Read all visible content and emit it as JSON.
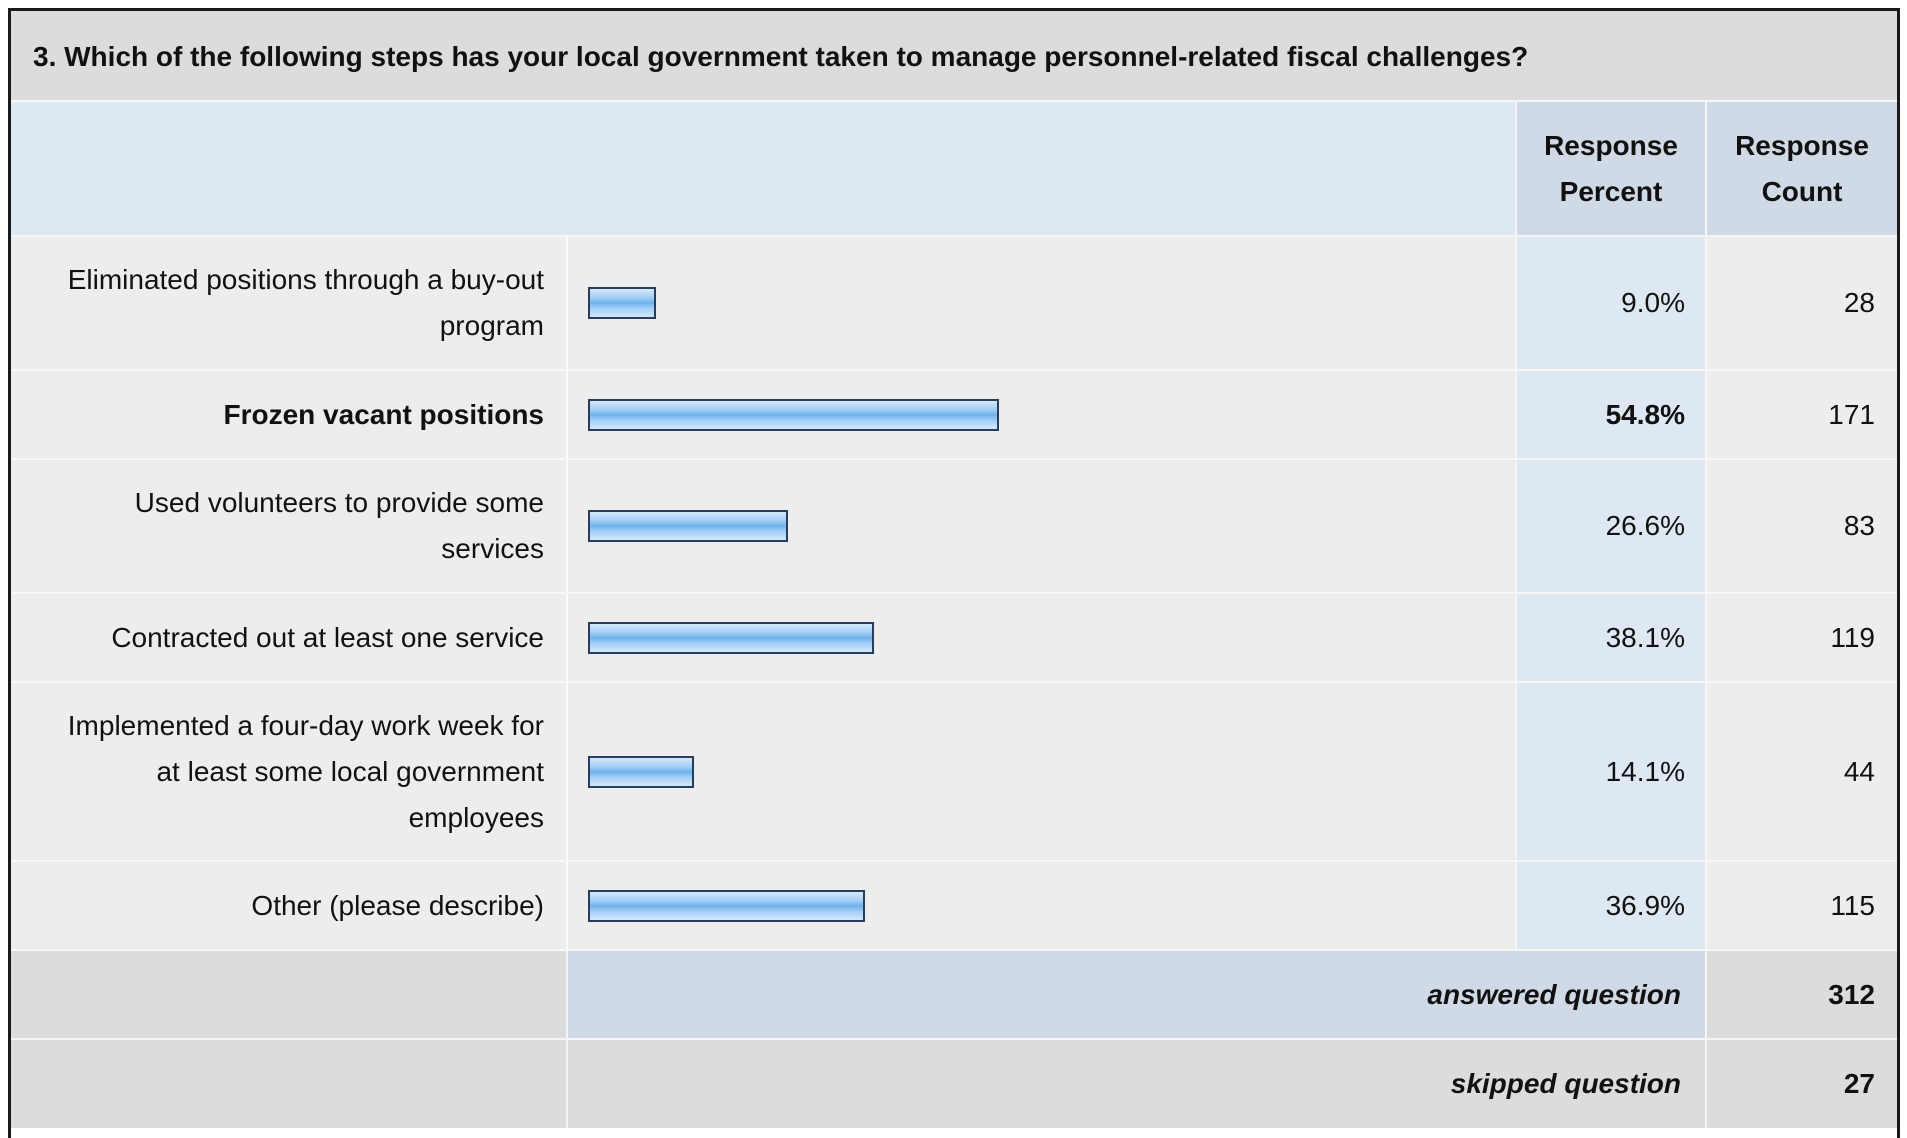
{
  "question": "3. Which of the following steps has your local government taken to manage personnel-related fiscal challenges?",
  "headers": {
    "percent_line1": "Response",
    "percent_line2": "Percent",
    "count_line1": "Response",
    "count_line2": "Count"
  },
  "chart_data": {
    "type": "bar",
    "orientation": "horizontal",
    "categories": [
      "Eliminated positions through a buy-out program",
      "Frozen vacant positions",
      "Used volunteers to provide some services",
      "Contracted out at least one service",
      "Implemented a four-day work week for at least some local government employees",
      "Other (please describe)"
    ],
    "values": [
      9.0,
      54.8,
      26.6,
      38.1,
      14.1,
      36.9
    ],
    "xlim": [
      0,
      100
    ]
  },
  "rows": [
    {
      "label": "Eliminated positions through a buy-out program",
      "percent": 9.0,
      "percent_text": "9.0%",
      "count": "28",
      "highlight": false
    },
    {
      "label": "Frozen vacant positions",
      "percent": 54.8,
      "percent_text": "54.8%",
      "count": "171",
      "highlight": true
    },
    {
      "label": "Used volunteers to provide some services",
      "percent": 26.6,
      "percent_text": "26.6%",
      "count": "83",
      "highlight": false
    },
    {
      "label": "Contracted out at least one service",
      "percent": 38.1,
      "percent_text": "38.1%",
      "count": "119",
      "highlight": false
    },
    {
      "label": "Implemented a four-day work week for at least some local government employees",
      "percent": 14.1,
      "percent_text": "14.1%",
      "count": "44",
      "highlight": false
    },
    {
      "label": "Other (please describe)",
      "percent": 36.9,
      "percent_text": "36.9%",
      "count": "115",
      "highlight": false
    }
  ],
  "footer": {
    "answered_label": "answered question",
    "answered_value": "312",
    "skipped_label": "skipped question",
    "skipped_value": "27"
  },
  "colors": {
    "bar_fill": "#6fb2ec",
    "bar_border": "#283c5c",
    "header_bg": "#dde8f3",
    "row_bg": "#ededed"
  }
}
